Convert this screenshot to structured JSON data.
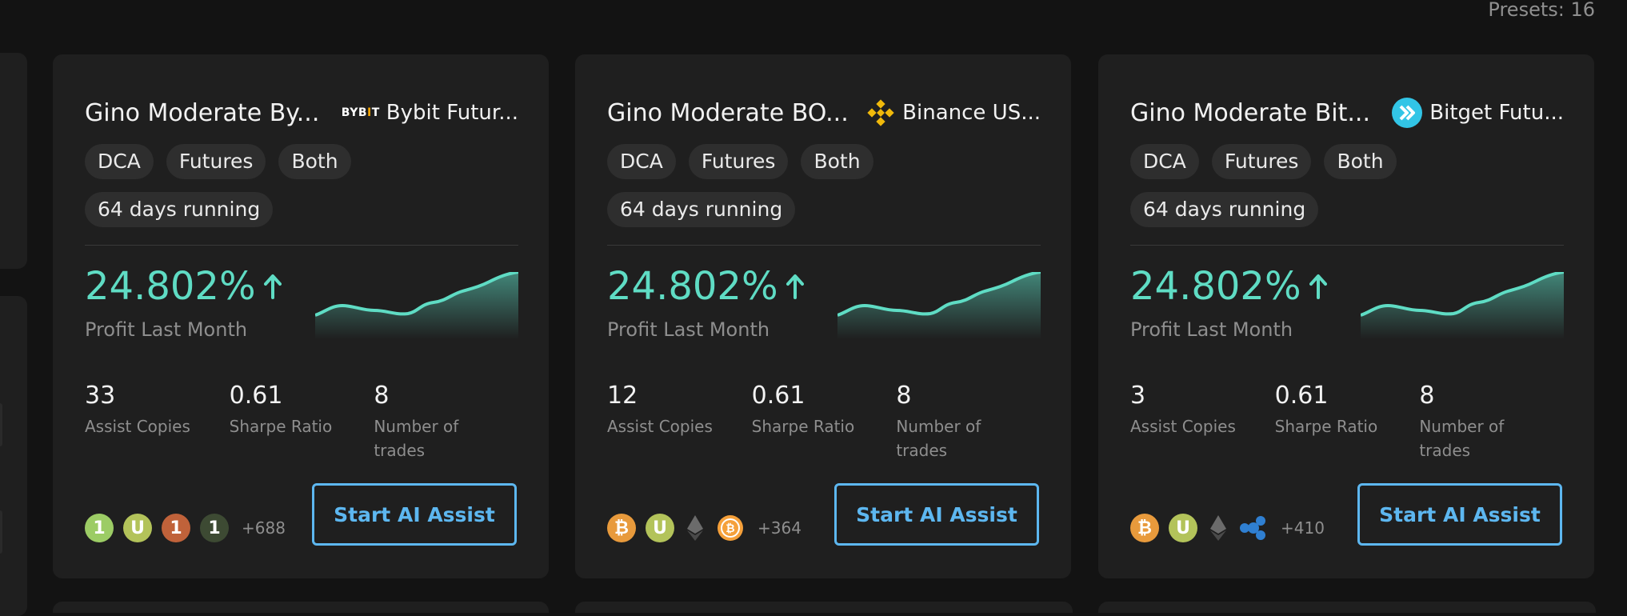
{
  "header": {
    "presets_label": "Presets: 16"
  },
  "colors": {
    "accent": "#5fdcc4",
    "button": "#5db7f0",
    "card_bg": "#1f1f1f",
    "page_bg": "#131313"
  },
  "cards": [
    {
      "title": "Gino Moderate By...",
      "exchange": "Bybit Futur...",
      "exchange_logo_text": "BYB",
      "exchange_logo_accent": "I",
      "exchange_logo_tail": "T",
      "exchange_icon": "bybit-logo",
      "tags": [
        "DCA",
        "Futures",
        "Both"
      ],
      "running": "64 days running",
      "profit_value": "24.802%",
      "profit_label": "Profit Last Month",
      "stats": [
        {
          "value": "33",
          "label": "Assist Copies"
        },
        {
          "value": "0.61",
          "label": "Sharpe Ratio"
        },
        {
          "value": "8",
          "label": "Number of trades"
        }
      ],
      "coins": [
        {
          "glyph": "1",
          "color": "#9ccc65",
          "icon": "coin-1-icon"
        },
        {
          "glyph": "U",
          "color": "#b3c35a",
          "icon": "coin-u-icon"
        },
        {
          "glyph": "1",
          "color": "#c0623a",
          "icon": "coin-1-orange-icon"
        },
        {
          "glyph": "1",
          "color": "#3d4a33",
          "icon": "coin-1-dark-icon"
        }
      ],
      "coins_more": "+688",
      "cta": "Start AI Assist"
    },
    {
      "title": "Gino Moderate BO...",
      "exchange": "Binance US...",
      "exchange_icon": "binance-logo",
      "tags": [
        "DCA",
        "Futures",
        "Both"
      ],
      "running": "64 days running",
      "profit_value": "24.802%",
      "profit_label": "Profit Last Month",
      "stats": [
        {
          "value": "12",
          "label": "Assist Copies"
        },
        {
          "value": "0.61",
          "label": "Sharpe Ratio"
        },
        {
          "value": "8",
          "label": "Number of trades"
        }
      ],
      "coins": [
        {
          "glyph": "₿",
          "color": "#e89a3c",
          "icon": "bitcoin-icon"
        },
        {
          "glyph": "U",
          "color": "#b3c35a",
          "icon": "coin-u-icon"
        },
        {
          "glyph": "eth",
          "color": "transparent",
          "icon": "ethereum-icon"
        },
        {
          "glyph": "₿",
          "color": "#f5a03a",
          "icon": "bitcoin-ring-icon"
        }
      ],
      "coins_more": "+364",
      "cta": "Start AI Assist"
    },
    {
      "title": "Gino Moderate Bit...",
      "exchange": "Bitget Futu...",
      "exchange_icon": "bitget-logo",
      "tags": [
        "DCA",
        "Futures",
        "Both"
      ],
      "running": "64 days running",
      "profit_value": "24.802%",
      "profit_label": "Profit Last Month",
      "stats": [
        {
          "value": "3",
          "label": "Assist Copies"
        },
        {
          "value": "0.61",
          "label": "Sharpe Ratio"
        },
        {
          "value": "8",
          "label": "Number of trades"
        }
      ],
      "coins": [
        {
          "glyph": "₿",
          "color": "#e89a3c",
          "icon": "bitcoin-icon"
        },
        {
          "glyph": "U",
          "color": "#b3c35a",
          "icon": "coin-u-icon"
        },
        {
          "glyph": "eth",
          "color": "transparent",
          "icon": "ethereum-icon"
        },
        {
          "glyph": "xrp",
          "color": "transparent",
          "icon": "xrp-icon"
        }
      ],
      "coins_more": "+410",
      "cta": "Start AI Assist"
    }
  ]
}
